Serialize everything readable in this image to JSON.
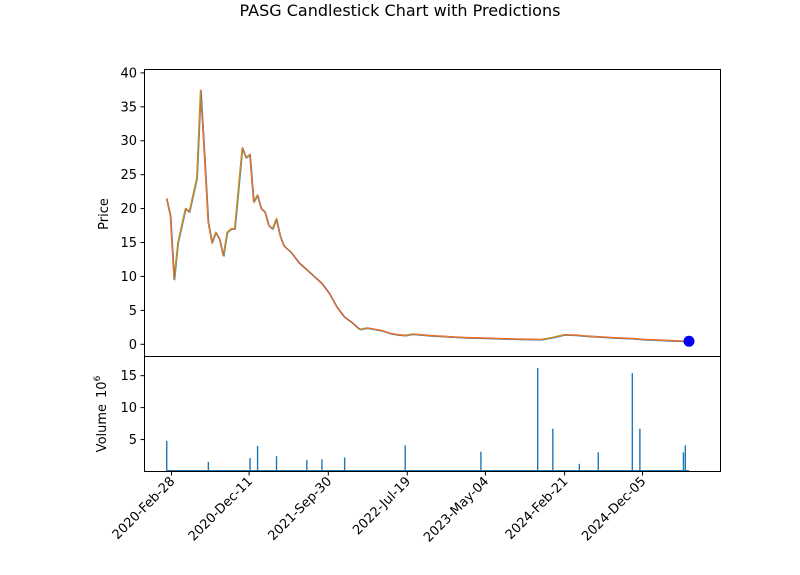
{
  "chart_data": {
    "type": "candlestick",
    "title": "PASG Candlestick Chart with Predictions",
    "price_panel": {
      "ylabel": "Price",
      "ylim": [
        -1.8,
        40.5
      ],
      "yticks": [
        "0",
        "5",
        "10",
        "15",
        "20",
        "25",
        "30",
        "35",
        "40"
      ],
      "series": [
        {
          "x": [
            "2020-Feb-10",
            "2020-Feb-24",
            "2020-Mar-09",
            "2020-Mar-23",
            "2020-Apr-06",
            "2020-Apr-20",
            "2020-May-04",
            "2020-May-18",
            "2020-Jun-01",
            "2020-Jun-15",
            "2020-Jun-29",
            "2020-Jul-13",
            "2020-Jul-27",
            "2020-Aug-10",
            "2020-Aug-24",
            "2020-Sep-07",
            "2020-Sep-21",
            "2020-Oct-05",
            "2020-Oct-19",
            "2020-Nov-02",
            "2020-Nov-16",
            "2020-Nov-30",
            "2020-Dec-14",
            "2020-Dec-28",
            "2021-Jan-11",
            "2021-Jan-25",
            "2021-Feb-08",
            "2021-Feb-22",
            "2021-Mar-08",
            "2021-Mar-22",
            "2021-Apr-05",
            "2021-Apr-19",
            "2021-May-03",
            "2021-May-17",
            "2021-Jun-14",
            "2021-Jul-12",
            "2021-Aug-09",
            "2021-Sep-06",
            "2021-Oct-04",
            "2021-Nov-01",
            "2021-Nov-29",
            "2021-Dec-27",
            "2022-Jan-24",
            "2022-Feb-21",
            "2022-Mar-21",
            "2022-Apr-18",
            "2022-May-16",
            "2022-Jun-13",
            "2022-Jul-11",
            "2022-Aug-08",
            "2022-Sep-05",
            "2022-Oct-03",
            "2022-Nov-14",
            "2022-Dec-26",
            "2023-Feb-06",
            "2023-Mar-20",
            "2023-May-01",
            "2023-Jun-12",
            "2023-Jul-24",
            "2023-Sep-04",
            "2023-Oct-16",
            "2023-Nov-27",
            "2024-Jan-08",
            "2024-Feb-19",
            "2024-Apr-01",
            "2024-May-13",
            "2024-Jun-24",
            "2024-Aug-05",
            "2024-Sep-16",
            "2024-Oct-28",
            "2024-Dec-09",
            "2025-Jan-20",
            "2025-Mar-03",
            "2025-Apr-14",
            "2025-May-26"
          ],
          "close": [
            21.5,
            19.0,
            9.5,
            15.0,
            17.5,
            20.0,
            19.5,
            22.0,
            24.5,
            37.5,
            28.0,
            18.0,
            15.0,
            16.5,
            15.5,
            13.0,
            16.5,
            17.0,
            17.0,
            23.0,
            29.0,
            27.5,
            28.0,
            21.0,
            22.0,
            20.0,
            19.5,
            17.5,
            17.0,
            18.5,
            16.0,
            14.5,
            14.0,
            13.5,
            12.0,
            11.0,
            10.0,
            9.0,
            7.5,
            5.5,
            4.0,
            3.2,
            2.2,
            2.4,
            2.2,
            2.0,
            1.6,
            1.4,
            1.3,
            1.5,
            1.4,
            1.3,
            1.2,
            1.1,
            1.0,
            0.95,
            0.9,
            0.85,
            0.8,
            0.75,
            0.72,
            0.7,
            1.0,
            1.4,
            1.35,
            1.2,
            1.1,
            1.0,
            0.9,
            0.85,
            0.7,
            0.65,
            0.55,
            0.5,
            0.4
          ]
        }
      ],
      "prediction": {
        "x": "2025-May-26",
        "value": 0.45,
        "color": "#0000ee"
      }
    },
    "volume_panel": {
      "ylabel": "Volume",
      "ylabel_exponent": "6",
      "ylim": [
        0,
        18
      ],
      "yticks": [
        "5",
        "10",
        "15"
      ],
      "spikes": [
        {
          "x": "2020-Feb-10",
          "value": 4.8
        },
        {
          "x": "2020-Jul-13",
          "value": 1.5
        },
        {
          "x": "2020-Dec-14",
          "value": 2.1
        },
        {
          "x": "2021-Jan-11",
          "value": 4.0
        },
        {
          "x": "2021-Mar-22",
          "value": 2.4
        },
        {
          "x": "2021-Jul-12",
          "value": 1.8
        },
        {
          "x": "2021-Sep-06",
          "value": 1.9
        },
        {
          "x": "2021-Nov-29",
          "value": 2.2
        },
        {
          "x": "2022-Jul-11",
          "value": 4.1
        },
        {
          "x": "2023-Apr-17",
          "value": 3.1
        },
        {
          "x": "2023-Nov-13",
          "value": 16.2
        },
        {
          "x": "2024-Jan-08",
          "value": 6.7
        },
        {
          "x": "2024-Apr-15",
          "value": 1.2
        },
        {
          "x": "2024-Jun-24",
          "value": 3.0
        },
        {
          "x": "2024-Oct-28",
          "value": 15.4
        },
        {
          "x": "2024-Nov-25",
          "value": 6.7
        },
        {
          "x": "2025-May-12",
          "value": 4.1
        },
        {
          "x": "2025-May-05",
          "value": 3.0
        }
      ]
    },
    "xticks": [
      "2020-Feb-28",
      "2020-Dec-11",
      "2021-Sep-30",
      "2022-Jul-19",
      "2023-May-04",
      "2024-Feb-21",
      "2024-Dec-05"
    ],
    "colors": {
      "up": "#2ca02c",
      "down": "#d62728",
      "line1": "#1f77b4",
      "line2": "#ff7f0e",
      "volume": "#1f77b4"
    },
    "grid": false,
    "legend": "none"
  }
}
